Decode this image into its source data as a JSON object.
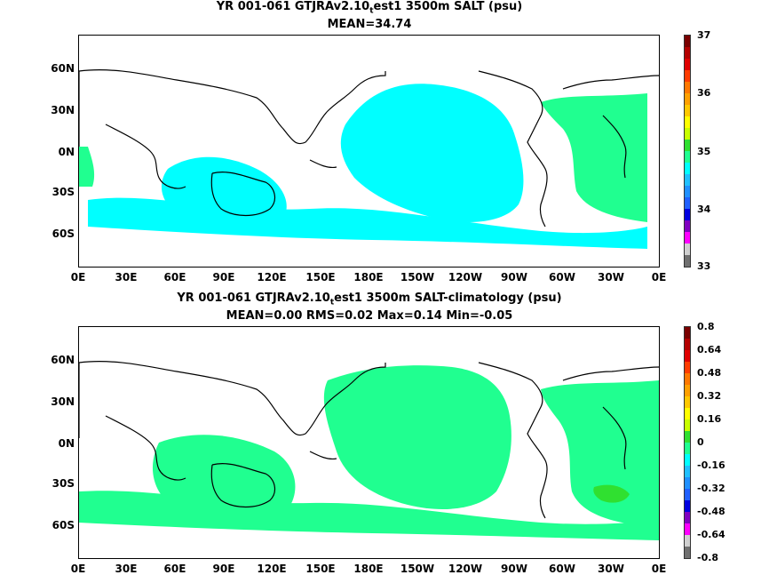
{
  "top": {
    "title_prefix": "YR 001-061 GTJRAv2.10",
    "title_sub": "t",
    "title_suffix": "est1 3500m SALT (psu)",
    "stats": "MEAN=34.74",
    "colorbar_labels": [
      "37",
      "36",
      "35",
      "34",
      "33"
    ],
    "colors": [
      "#7a0000",
      "#b40000",
      "#e00000",
      "#ff3c00",
      "#ff7800",
      "#ffa000",
      "#ffc800",
      "#ffff00",
      "#c8ff00",
      "#30e030",
      "#20ff90",
      "#00ffff",
      "#20c0ff",
      "#2090ff",
      "#2060ff",
      "#0000e0",
      "#8000c0",
      "#ff00ff",
      "#d0d0d0",
      "#707070"
    ]
  },
  "bottom": {
    "title_prefix": "YR 001-061 GTJRAv2.10",
    "title_sub": "t",
    "title_suffix": "est1 3500m SALT-climatology (psu)",
    "stats": "MEAN=0.00   RMS=0.02   Max=0.14   Min=-0.05",
    "colorbar_labels": [
      "0.8",
      "0.64",
      "0.48",
      "0.32",
      "0.16",
      "0",
      "-0.16",
      "-0.32",
      "-0.48",
      "-0.64",
      "-0.8"
    ],
    "colors": [
      "#7a0000",
      "#b40000",
      "#e00000",
      "#ff3c00",
      "#ff7800",
      "#ffa000",
      "#ffc800",
      "#ffff00",
      "#c8ff00",
      "#30e030",
      "#20ff90",
      "#00ffff",
      "#20c0ff",
      "#2090ff",
      "#2060ff",
      "#0000e0",
      "#8000c0",
      "#ff00ff",
      "#d0d0d0",
      "#707070"
    ]
  },
  "axes": {
    "lat_labels": [
      "60N",
      "30N",
      "0N",
      "30S",
      "60S"
    ],
    "lon_labels": [
      "0E",
      "30E",
      "60E",
      "90E",
      "120E",
      "150E",
      "180E",
      "150W",
      "120W",
      "90W",
      "60W",
      "30W",
      "0E"
    ]
  },
  "fill_colors": {
    "top_main": "#00ffff",
    "top_secondary": "#20ff90",
    "bottom_main": "#20ff90",
    "bottom_secondary": "#30e030"
  }
}
